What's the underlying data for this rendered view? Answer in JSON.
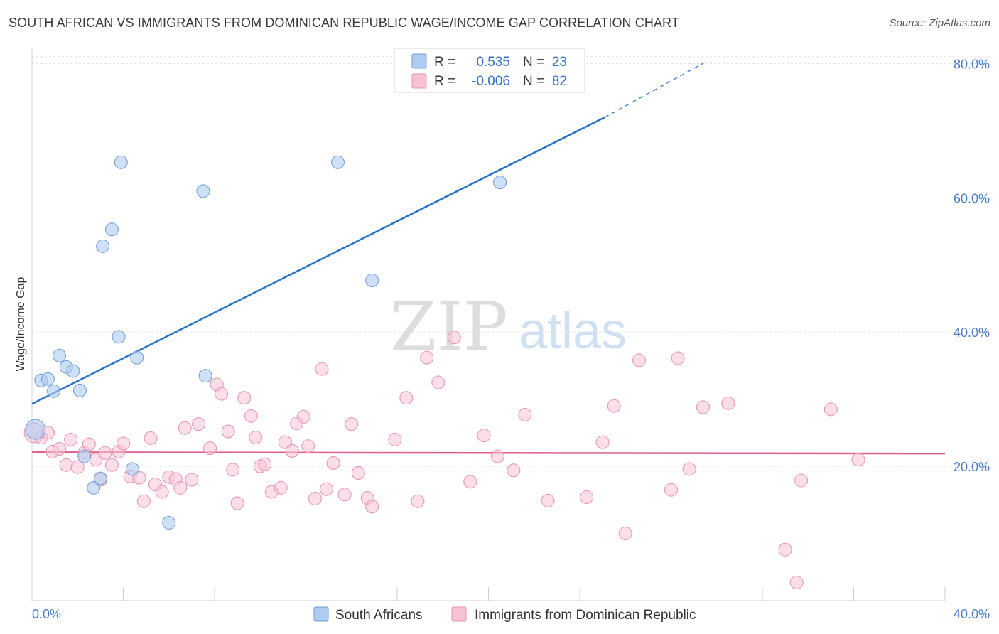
{
  "title": "SOUTH AFRICAN VS IMMIGRANTS FROM DOMINICAN REPUBLIC WAGE/INCOME GAP CORRELATION CHART",
  "source": "Source: ZipAtlas.com",
  "watermark": {
    "zip": "ZIP",
    "atlas": "atlas"
  },
  "colors": {
    "blue_fill": "#aecbf0",
    "blue_stroke": "#6e9bd8",
    "blue_line": "#2a72c8",
    "pink_fill": "#f7c3d3",
    "pink_stroke": "#e891ad",
    "pink_line": "#e0608c",
    "tick_text": "#4a7fc8",
    "grid": "#e2e2e2"
  },
  "legend": {
    "rows": [
      {
        "r_label": "R =",
        "r_value": "0.535",
        "n_label": "N =",
        "n_value": "23"
      },
      {
        "r_label": "R =",
        "r_value": "-0.006",
        "n_label": "N =",
        "n_value": "82"
      }
    ]
  },
  "chart_data": {
    "type": "scatter",
    "title": "SOUTH AFRICAN VS IMMIGRANTS FROM DOMINICAN REPUBLIC WAGE/INCOME GAP CORRELATION CHART",
    "xlabel": "",
    "ylabel": "Wage/Income Gap",
    "xlim": [
      0,
      40
    ],
    "ylim": [
      0,
      81
    ],
    "x_tick_labels": [
      "0.0%",
      "40.0%"
    ],
    "y_ticks": [
      20,
      40,
      60,
      80
    ],
    "y_tick_labels": [
      "20.0%",
      "40.0%",
      "60.0%",
      "80.0%"
    ],
    "grid": true,
    "legend_position": "top-center",
    "series": [
      {
        "name": "South Africans",
        "color": "#aecbf0",
        "points": [
          [
            0.15,
            25.5
          ],
          [
            0.4,
            32.8
          ],
          [
            0.7,
            33.0
          ],
          [
            0.95,
            31.2
          ],
          [
            1.2,
            36.5
          ],
          [
            1.5,
            34.8
          ],
          [
            1.8,
            34.2
          ],
          [
            2.1,
            31.3
          ],
          [
            2.3,
            21.5
          ],
          [
            2.7,
            16.8
          ],
          [
            3.0,
            18.2
          ],
          [
            3.1,
            52.8
          ],
          [
            3.5,
            55.3
          ],
          [
            3.8,
            39.3
          ],
          [
            3.9,
            65.3
          ],
          [
            4.4,
            19.6
          ],
          [
            4.6,
            36.2
          ],
          [
            6.0,
            11.6
          ],
          [
            7.5,
            61.0
          ],
          [
            7.6,
            33.5
          ],
          [
            13.4,
            65.3
          ],
          [
            14.9,
            47.7
          ],
          [
            20.5,
            62.3
          ]
        ],
        "trend": {
          "x_start": 0,
          "y_start": 29.3,
          "x_end": 25.1,
          "y_end": 72.0,
          "dashed_x_end": 29.6,
          "dashed_y_end": 80.4
        }
      },
      {
        "name": "Immigrants from Dominican Republic",
        "color": "#f7c3d3",
        "points": [
          [
            0.1,
            25.0
          ],
          [
            0.4,
            24.3
          ],
          [
            0.7,
            25.0
          ],
          [
            0.9,
            22.2
          ],
          [
            1.2,
            22.6
          ],
          [
            1.5,
            20.2
          ],
          [
            1.7,
            24.0
          ],
          [
            2.0,
            19.9
          ],
          [
            2.3,
            22.0
          ],
          [
            2.5,
            23.3
          ],
          [
            2.8,
            21.0
          ],
          [
            3.0,
            18.0
          ],
          [
            3.2,
            22.0
          ],
          [
            3.5,
            20.2
          ],
          [
            3.8,
            22.2
          ],
          [
            4.0,
            23.4
          ],
          [
            4.3,
            18.5
          ],
          [
            4.7,
            18.3
          ],
          [
            4.9,
            14.8
          ],
          [
            5.2,
            24.2
          ],
          [
            5.4,
            17.3
          ],
          [
            5.7,
            16.2
          ],
          [
            6.0,
            18.4
          ],
          [
            6.3,
            18.1
          ],
          [
            6.5,
            16.8
          ],
          [
            6.7,
            25.7
          ],
          [
            7.0,
            18.0
          ],
          [
            7.3,
            26.3
          ],
          [
            7.8,
            22.7
          ],
          [
            8.1,
            32.2
          ],
          [
            8.3,
            30.8
          ],
          [
            8.6,
            25.2
          ],
          [
            8.8,
            19.5
          ],
          [
            9.0,
            14.5
          ],
          [
            9.3,
            30.2
          ],
          [
            9.6,
            27.5
          ],
          [
            9.8,
            24.3
          ],
          [
            10.0,
            20.0
          ],
          [
            10.2,
            20.3
          ],
          [
            10.5,
            16.2
          ],
          [
            10.9,
            16.8
          ],
          [
            11.1,
            23.6
          ],
          [
            11.4,
            22.3
          ],
          [
            11.6,
            26.4
          ],
          [
            11.9,
            27.4
          ],
          [
            12.1,
            23.0
          ],
          [
            12.4,
            15.2
          ],
          [
            12.7,
            34.5
          ],
          [
            12.9,
            16.6
          ],
          [
            13.2,
            20.5
          ],
          [
            13.7,
            15.8
          ],
          [
            14.0,
            26.3
          ],
          [
            14.3,
            19.0
          ],
          [
            14.7,
            15.3
          ],
          [
            14.9,
            14.0
          ],
          [
            15.9,
            24.0
          ],
          [
            16.4,
            30.2
          ],
          [
            16.9,
            14.8
          ],
          [
            17.3,
            36.2
          ],
          [
            17.8,
            32.5
          ],
          [
            18.5,
            39.2
          ],
          [
            19.2,
            17.7
          ],
          [
            19.8,
            24.6
          ],
          [
            20.4,
            21.5
          ],
          [
            21.1,
            19.4
          ],
          [
            21.6,
            27.7
          ],
          [
            22.6,
            14.9
          ],
          [
            24.3,
            15.4
          ],
          [
            25.0,
            23.6
          ],
          [
            25.5,
            29.0
          ],
          [
            26.0,
            10.0
          ],
          [
            26.6,
            35.8
          ],
          [
            28.0,
            16.5
          ],
          [
            28.3,
            36.1
          ],
          [
            28.8,
            19.6
          ],
          [
            29.4,
            28.8
          ],
          [
            30.5,
            29.4
          ],
          [
            33.0,
            7.6
          ],
          [
            33.5,
            2.7
          ],
          [
            33.7,
            17.9
          ],
          [
            35.0,
            28.5
          ],
          [
            36.2,
            21.0
          ]
        ],
        "trend": {
          "x_start": 0,
          "y_start": 22.1,
          "x_end": 40,
          "y_end": 21.9
        }
      }
    ]
  }
}
